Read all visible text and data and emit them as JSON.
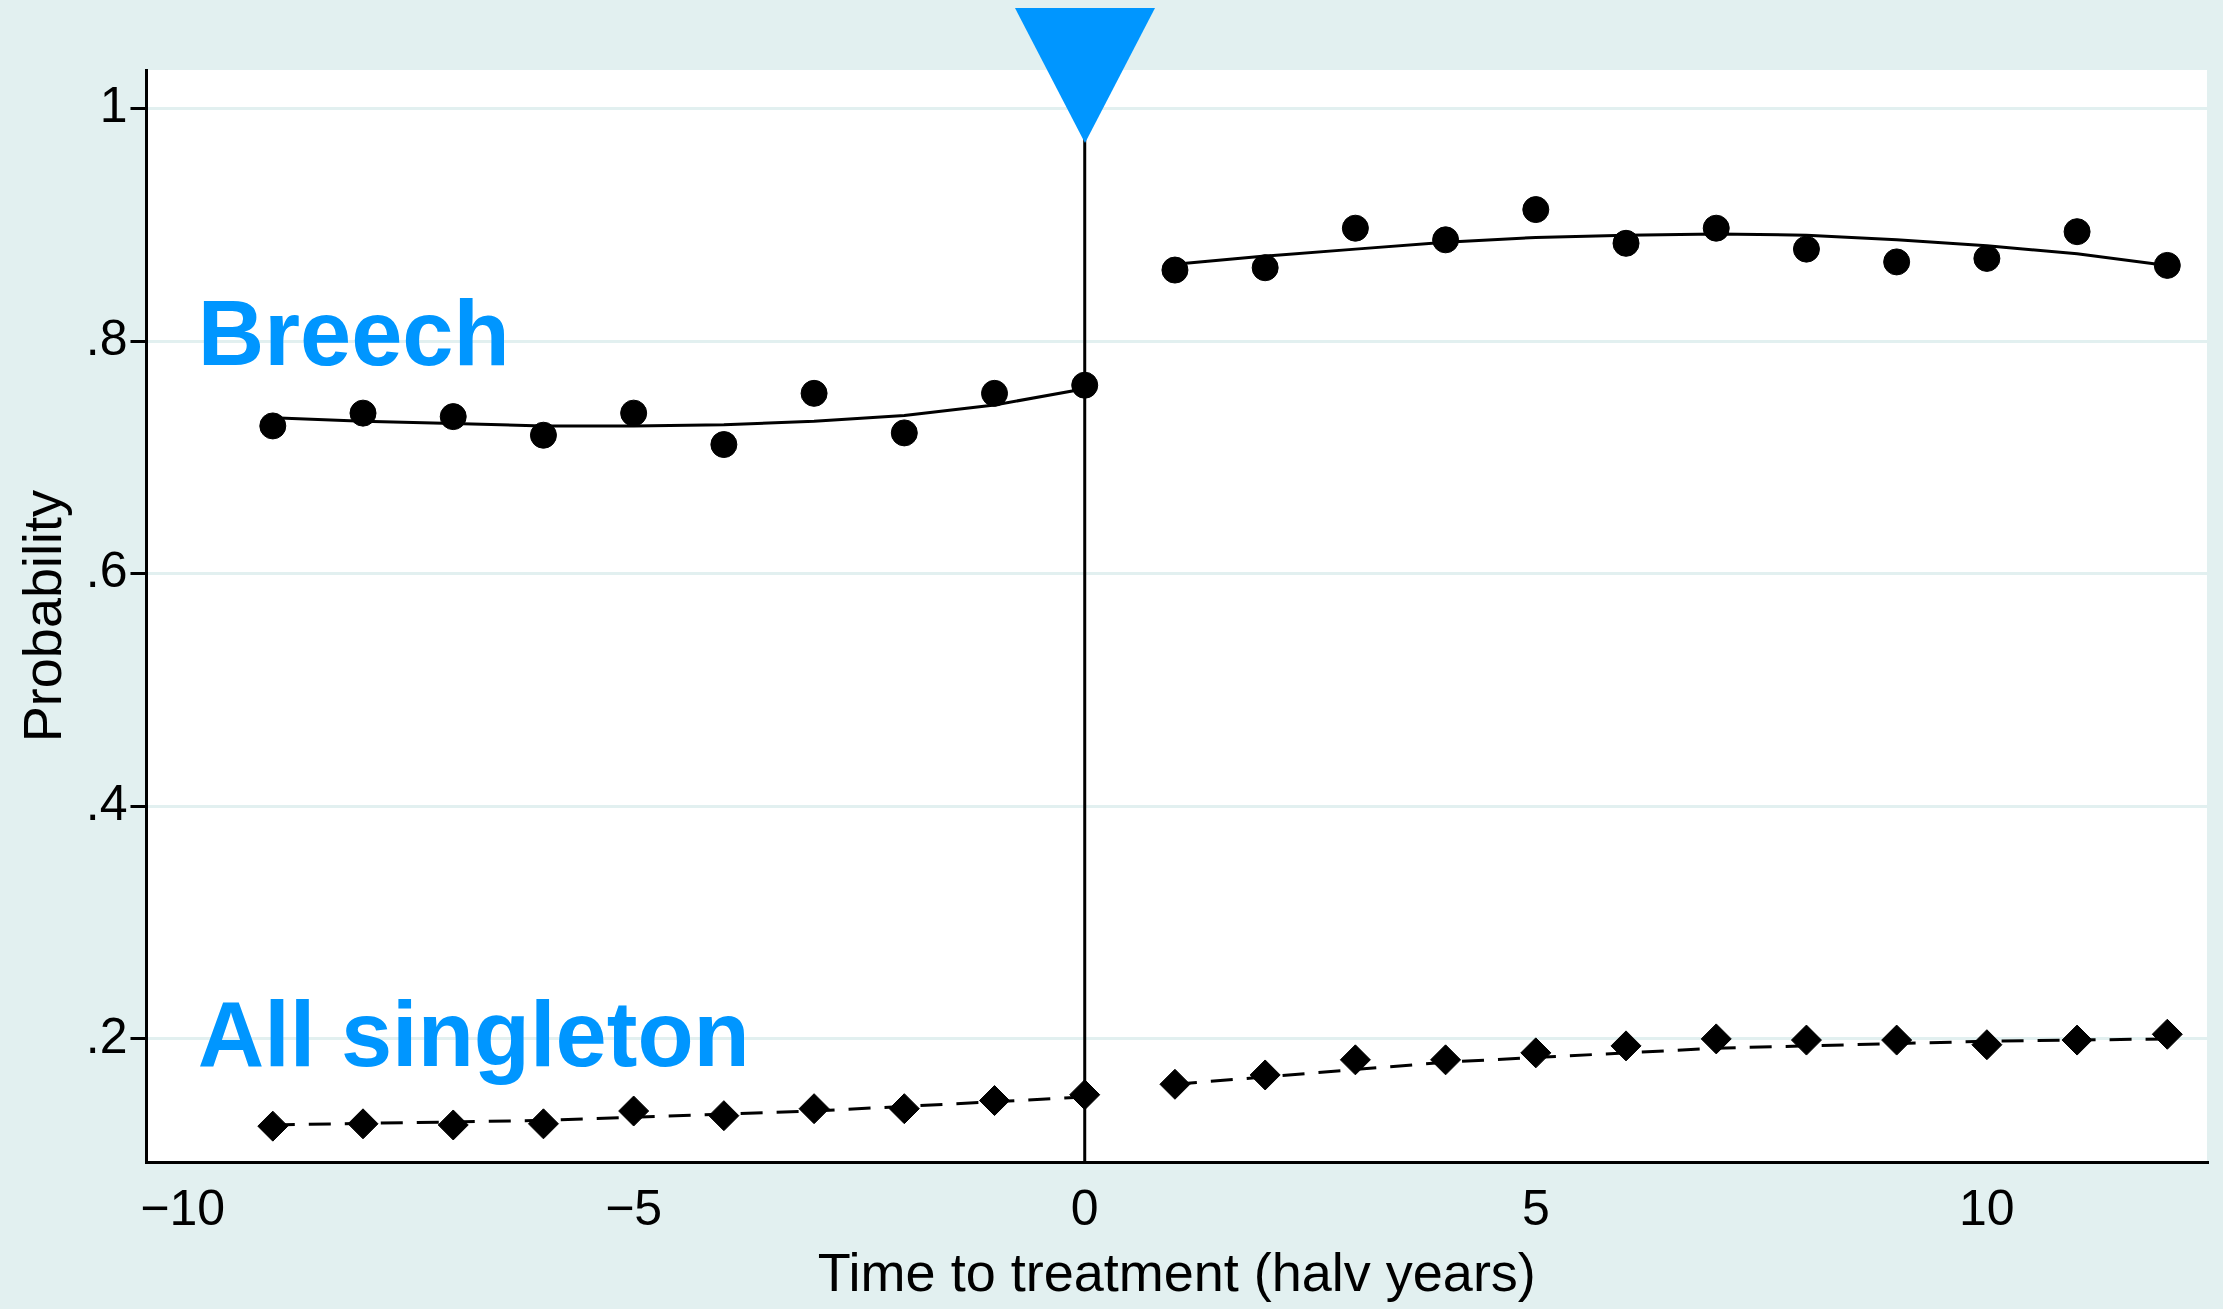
{
  "chart_data": {
    "type": "scatter",
    "xlabel": "Time to treatment (halv years)",
    "ylabel": "Probability",
    "x": [
      -9,
      -8,
      -7,
      -6,
      -5,
      -4,
      -3,
      -2,
      -1,
      0,
      1,
      2,
      3,
      4,
      5,
      6,
      7,
      8,
      9,
      10,
      11,
      12
    ],
    "series": [
      {
        "name": "Breech",
        "color": "#000000",
        "marker": "circle",
        "values": [
          0.727,
          0.738,
          0.735,
          0.719,
          0.738,
          0.711,
          0.755,
          0.721,
          0.755,
          0.762,
          0.861,
          0.863,
          0.897,
          0.887,
          0.913,
          0.884,
          0.897,
          0.879,
          0.868,
          0.871,
          0.894,
          0.865
        ]
      },
      {
        "name": "All singleton",
        "color": "#000000",
        "marker": "diamond",
        "values": [
          0.125,
          0.127,
          0.126,
          0.127,
          0.138,
          0.134,
          0.14,
          0.14,
          0.147,
          0.152,
          0.161,
          0.169,
          0.182,
          0.182,
          0.188,
          0.194,
          0.2,
          0.199,
          0.199,
          0.195,
          0.199,
          0.204
        ]
      },
      {
        "type": "line",
        "color": "#000000",
        "marker": "none",
        "line_style": "solid",
        "x": [
          -9,
          -8,
          -7,
          -6,
          -5,
          -4,
          -3,
          -2,
          -1,
          0
        ],
        "values": [
          0.734,
          0.731,
          0.729,
          0.727,
          0.727,
          0.728,
          0.731,
          0.736,
          0.745,
          0.759
        ]
      },
      {
        "type": "line",
        "color": "#000000",
        "marker": "none",
        "line_style": "solid",
        "x": [
          1,
          2,
          3,
          4,
          5,
          6,
          7,
          8,
          9,
          10,
          11,
          12
        ],
        "values": [
          0.866,
          0.873,
          0.879,
          0.885,
          0.889,
          0.891,
          0.892,
          0.891,
          0.887,
          0.882,
          0.875,
          0.865
        ]
      },
      {
        "type": "line",
        "color": "#000000",
        "marker": "none",
        "line_style": "dashed",
        "x": [
          -9,
          -6,
          -3,
          0
        ],
        "values": [
          0.126,
          0.13,
          0.138,
          0.15
        ]
      },
      {
        "type": "line",
        "color": "#000000",
        "marker": "none",
        "line_style": "dashed",
        "x": [
          1,
          4,
          7,
          10,
          12
        ],
        "values": [
          0.161,
          0.18,
          0.192,
          0.198,
          0.2
        ]
      }
    ],
    "xlim": [
      -10.4,
      12.44
    ],
    "xticks": [
      {
        "value": -10,
        "label": "−10"
      },
      {
        "value": -5,
        "label": "−5"
      },
      0,
      5,
      10
    ],
    "ylim": [
      0.094,
      1.033
    ],
    "yticks": [
      {
        "value": 0.2,
        "label": ".2"
      },
      {
        "value": 0.4,
        "label": ".4"
      },
      {
        "value": 0.6,
        "label": ".6"
      },
      {
        "value": 0.8,
        "label": ".8"
      },
      1
    ],
    "grid": "y",
    "legend": "left",
    "ref_lines": [
      {
        "axis": "x",
        "value": 0,
        "color": "#000000"
      }
    ]
  }
}
